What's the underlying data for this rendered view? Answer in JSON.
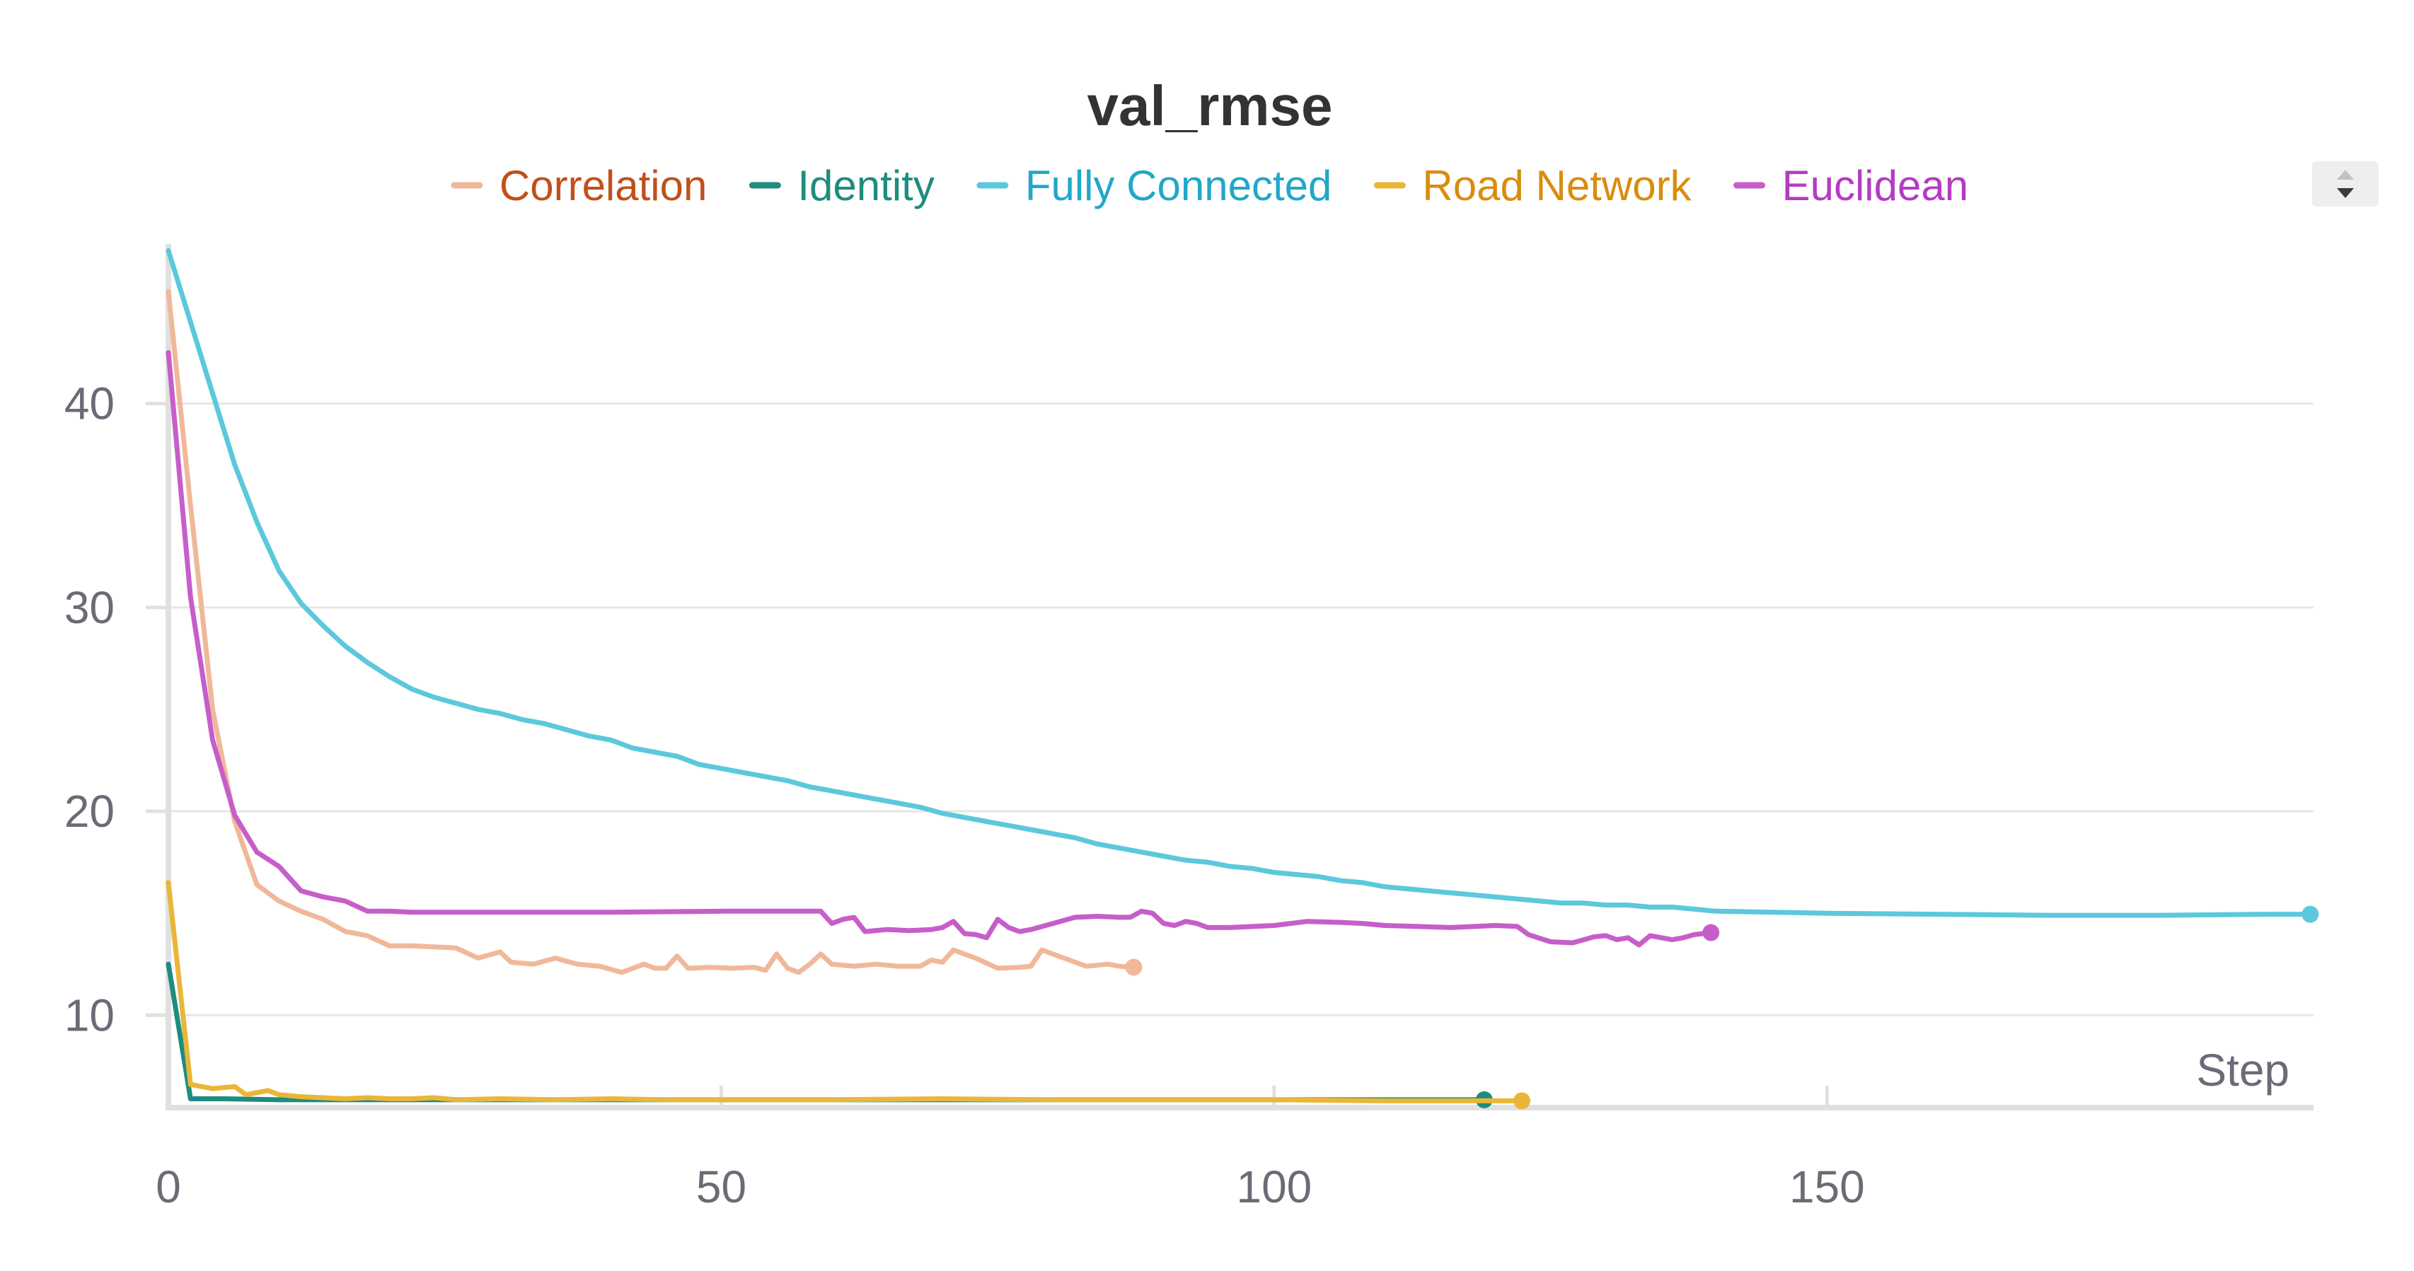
{
  "chart_data": {
    "type": "line",
    "title": "val_rmse",
    "xlabel": "Step",
    "ylabel": "",
    "xlim": [
      0,
      194
    ],
    "ylim": [
      5.5,
      48
    ],
    "xticks": [
      0,
      50,
      100,
      150
    ],
    "yticks": [
      10,
      20,
      30,
      40
    ],
    "grid": true,
    "legend_position": "top-center",
    "series": [
      {
        "name": "Correlation",
        "color": "#f0b89a",
        "label_color": "#c0501b",
        "points": [
          [
            0,
            45.5
          ],
          [
            2,
            35
          ],
          [
            4,
            25
          ],
          [
            6,
            19.5
          ],
          [
            8,
            16.4
          ],
          [
            10,
            15.6
          ],
          [
            12,
            15.1
          ],
          [
            14,
            14.7
          ],
          [
            16,
            14.1
          ],
          [
            18,
            13.9
          ],
          [
            20,
            13.4
          ],
          [
            22,
            13.4
          ],
          [
            24,
            13.35
          ],
          [
            26,
            13.3
          ],
          [
            28,
            12.8
          ],
          [
            30,
            13.1
          ],
          [
            31,
            12.6
          ],
          [
            33,
            12.5
          ],
          [
            35,
            12.8
          ],
          [
            37,
            12.5
          ],
          [
            39,
            12.4
          ],
          [
            41,
            12.1
          ],
          [
            43,
            12.5
          ],
          [
            44,
            12.3
          ],
          [
            45,
            12.3
          ],
          [
            46,
            12.9
          ],
          [
            47,
            12.3
          ],
          [
            49,
            12.35
          ],
          [
            51,
            12.3
          ],
          [
            53,
            12.35
          ],
          [
            54,
            12.2
          ],
          [
            55,
            13.0
          ],
          [
            56,
            12.3
          ],
          [
            57,
            12.1
          ],
          [
            58,
            12.5
          ],
          [
            59,
            13.0
          ],
          [
            60,
            12.5
          ],
          [
            62,
            12.4
          ],
          [
            64,
            12.5
          ],
          [
            66,
            12.4
          ],
          [
            68,
            12.4
          ],
          [
            69,
            12.7
          ],
          [
            70,
            12.6
          ],
          [
            71,
            13.2
          ],
          [
            73,
            12.8
          ],
          [
            75,
            12.3
          ],
          [
            77,
            12.35
          ],
          [
            78,
            12.4
          ],
          [
            79,
            13.2
          ],
          [
            80,
            13.0
          ],
          [
            82,
            12.6
          ],
          [
            83,
            12.4
          ],
          [
            85,
            12.5
          ],
          [
            86,
            12.4
          ],
          [
            87.3,
            12.35
          ]
        ]
      },
      {
        "name": "Identity",
        "color": "#1e8c7e",
        "label_color": "#1e8c7e",
        "points": [
          [
            0,
            12.5
          ],
          [
            2,
            5.9
          ],
          [
            5,
            5.9
          ],
          [
            10,
            5.85
          ],
          [
            20,
            5.85
          ],
          [
            40,
            5.85
          ],
          [
            60,
            5.85
          ],
          [
            80,
            5.85
          ],
          [
            100,
            5.85
          ],
          [
            119,
            5.85
          ]
        ]
      },
      {
        "name": "Fully Connected",
        "color": "#5cc8dc",
        "label_color": "#22a7c8",
        "points": [
          [
            0,
            47.5
          ],
          [
            2,
            44
          ],
          [
            4,
            40.5
          ],
          [
            6,
            37
          ],
          [
            8,
            34.2
          ],
          [
            10,
            31.8
          ],
          [
            12,
            30.2
          ],
          [
            14,
            29.1
          ],
          [
            16,
            28.1
          ],
          [
            18,
            27.3
          ],
          [
            20,
            26.6
          ],
          [
            22,
            26.0
          ],
          [
            24,
            25.6
          ],
          [
            26,
            25.3
          ],
          [
            28,
            25.0
          ],
          [
            30,
            24.8
          ],
          [
            32,
            24.5
          ],
          [
            34,
            24.3
          ],
          [
            36,
            24.0
          ],
          [
            38,
            23.7
          ],
          [
            40,
            23.5
          ],
          [
            42,
            23.1
          ],
          [
            44,
            22.9
          ],
          [
            46,
            22.7
          ],
          [
            48,
            22.3
          ],
          [
            50,
            22.1
          ],
          [
            52,
            21.9
          ],
          [
            54,
            21.7
          ],
          [
            56,
            21.5
          ],
          [
            58,
            21.2
          ],
          [
            60,
            21.0
          ],
          [
            62,
            20.8
          ],
          [
            64,
            20.6
          ],
          [
            66,
            20.4
          ],
          [
            68,
            20.2
          ],
          [
            70,
            19.9
          ],
          [
            72,
            19.7
          ],
          [
            74,
            19.5
          ],
          [
            76,
            19.3
          ],
          [
            78,
            19.1
          ],
          [
            80,
            18.9
          ],
          [
            82,
            18.7
          ],
          [
            84,
            18.4
          ],
          [
            86,
            18.2
          ],
          [
            88,
            18.0
          ],
          [
            90,
            17.8
          ],
          [
            92,
            17.6
          ],
          [
            94,
            17.5
          ],
          [
            96,
            17.3
          ],
          [
            98,
            17.2
          ],
          [
            100,
            17.0
          ],
          [
            102,
            16.9
          ],
          [
            104,
            16.8
          ],
          [
            106,
            16.6
          ],
          [
            108,
            16.5
          ],
          [
            110,
            16.3
          ],
          [
            112,
            16.2
          ],
          [
            114,
            16.1
          ],
          [
            116,
            16.0
          ],
          [
            118,
            15.9
          ],
          [
            120,
            15.8
          ],
          [
            122,
            15.7
          ],
          [
            124,
            15.6
          ],
          [
            126,
            15.5
          ],
          [
            128,
            15.5
          ],
          [
            130,
            15.4
          ],
          [
            132,
            15.4
          ],
          [
            134,
            15.3
          ],
          [
            136,
            15.3
          ],
          [
            138,
            15.2
          ],
          [
            140,
            15.1
          ],
          [
            145,
            15.05
          ],
          [
            150,
            15.0
          ],
          [
            160,
            14.95
          ],
          [
            170,
            14.9
          ],
          [
            180,
            14.9
          ],
          [
            190,
            14.95
          ],
          [
            193.7,
            14.95
          ]
        ]
      },
      {
        "name": "Road Network",
        "color": "#eab63a",
        "label_color": "#d98d0e",
        "points": [
          [
            0,
            16.5
          ],
          [
            2,
            6.6
          ],
          [
            4,
            6.4
          ],
          [
            6,
            6.5
          ],
          [
            7,
            6.1
          ],
          [
            9,
            6.3
          ],
          [
            10,
            6.1
          ],
          [
            12,
            6.0
          ],
          [
            14,
            5.95
          ],
          [
            16,
            5.9
          ],
          [
            18,
            5.95
          ],
          [
            20,
            5.9
          ],
          [
            22,
            5.9
          ],
          [
            24,
            5.95
          ],
          [
            26,
            5.85
          ],
          [
            30,
            5.9
          ],
          [
            35,
            5.85
          ],
          [
            40,
            5.9
          ],
          [
            45,
            5.85
          ],
          [
            50,
            5.85
          ],
          [
            60,
            5.85
          ],
          [
            70,
            5.9
          ],
          [
            80,
            5.85
          ],
          [
            90,
            5.85
          ],
          [
            100,
            5.85
          ],
          [
            110,
            5.8
          ],
          [
            122.4,
            5.8
          ]
        ]
      },
      {
        "name": "Euclidean",
        "color": "#c65ec9",
        "label_color": "#b33cc3",
        "points": [
          [
            0,
            42.5
          ],
          [
            2,
            30.5
          ],
          [
            4,
            23.5
          ],
          [
            6,
            19.8
          ],
          [
            8,
            18.0
          ],
          [
            10,
            17.3
          ],
          [
            12,
            16.1
          ],
          [
            14,
            15.8
          ],
          [
            16,
            15.6
          ],
          [
            18,
            15.1
          ],
          [
            20,
            15.1
          ],
          [
            22,
            15.05
          ],
          [
            24,
            15.05
          ],
          [
            26,
            15.05
          ],
          [
            28,
            15.05
          ],
          [
            30,
            15.05
          ],
          [
            40,
            15.05
          ],
          [
            50,
            15.1
          ],
          [
            59,
            15.1
          ],
          [
            60,
            14.5
          ],
          [
            61,
            14.7
          ],
          [
            62,
            14.8
          ],
          [
            63,
            14.1
          ],
          [
            65,
            14.2
          ],
          [
            67,
            14.15
          ],
          [
            69,
            14.2
          ],
          [
            70,
            14.3
          ],
          [
            71,
            14.6
          ],
          [
            72,
            14.0
          ],
          [
            73,
            13.95
          ],
          [
            74,
            13.8
          ],
          [
            75,
            14.7
          ],
          [
            76,
            14.3
          ],
          [
            77,
            14.1
          ],
          [
            78,
            14.2
          ],
          [
            80,
            14.5
          ],
          [
            82,
            14.8
          ],
          [
            84,
            14.85
          ],
          [
            86,
            14.8
          ],
          [
            87,
            14.8
          ],
          [
            88,
            15.1
          ],
          [
            89,
            15.0
          ],
          [
            90,
            14.5
          ],
          [
            91,
            14.4
          ],
          [
            92,
            14.6
          ],
          [
            93,
            14.5
          ],
          [
            94,
            14.3
          ],
          [
            96,
            14.3
          ],
          [
            100,
            14.4
          ],
          [
            103,
            14.6
          ],
          [
            106,
            14.55
          ],
          [
            108,
            14.5
          ],
          [
            110,
            14.4
          ],
          [
            113,
            14.35
          ],
          [
            116,
            14.3
          ],
          [
            120,
            14.4
          ],
          [
            122,
            14.35
          ],
          [
            123,
            13.95
          ],
          [
            125,
            13.6
          ],
          [
            127,
            13.55
          ],
          [
            129,
            13.85
          ],
          [
            130,
            13.9
          ],
          [
            131,
            13.7
          ],
          [
            132,
            13.8
          ],
          [
            133,
            13.45
          ],
          [
            134,
            13.9
          ],
          [
            136,
            13.7
          ],
          [
            137,
            13.8
          ],
          [
            138,
            13.95
          ],
          [
            139.5,
            14.05
          ]
        ]
      }
    ]
  },
  "controls": {
    "legend_scroll_up": "▲",
    "legend_scroll_down": "▼",
    "icon": "legend-scroll-arrows-icon"
  }
}
